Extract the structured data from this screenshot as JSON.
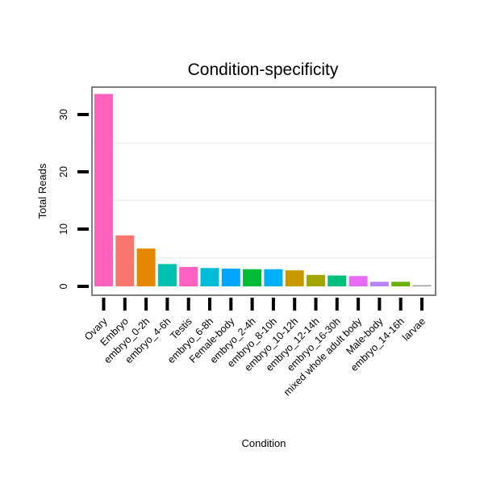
{
  "chart_data": {
    "type": "bar",
    "title": "Condition-specificity",
    "xlabel": "Condition",
    "ylabel": "Total Reads",
    "ylim": [
      0,
      35
    ],
    "yticks": [
      0,
      10,
      20,
      30
    ],
    "grid": true,
    "categories": [
      "Ovary",
      "Embryo",
      "embryo_0-2h",
      "embryo_4-6h",
      "Testis",
      "embryo_6-8h",
      "Female-body",
      "embryo_2-4h",
      "embryo_8-10h",
      "embryo_10-12h",
      "embryo_12-14h",
      "embryo_16-30h",
      "mixed whole adult body",
      "Male-body",
      "embryo_14-16h",
      "larvae"
    ],
    "values": [
      33.6,
      8.9,
      6.6,
      3.9,
      3.4,
      3.2,
      3.1,
      3.0,
      3.0,
      2.8,
      2.0,
      1.9,
      1.8,
      0.8,
      0.8,
      0.2
    ],
    "colors": [
      "#FF62BC",
      "#F8766D",
      "#E58700",
      "#00C0AF",
      "#FF61C3",
      "#00BCD8",
      "#00A5FF",
      "#00BA38",
      "#00B0F6",
      "#C99800",
      "#A3A500",
      "#00BF7D",
      "#E76BF3",
      "#B983FF",
      "#6BB100",
      "#999999"
    ]
  }
}
